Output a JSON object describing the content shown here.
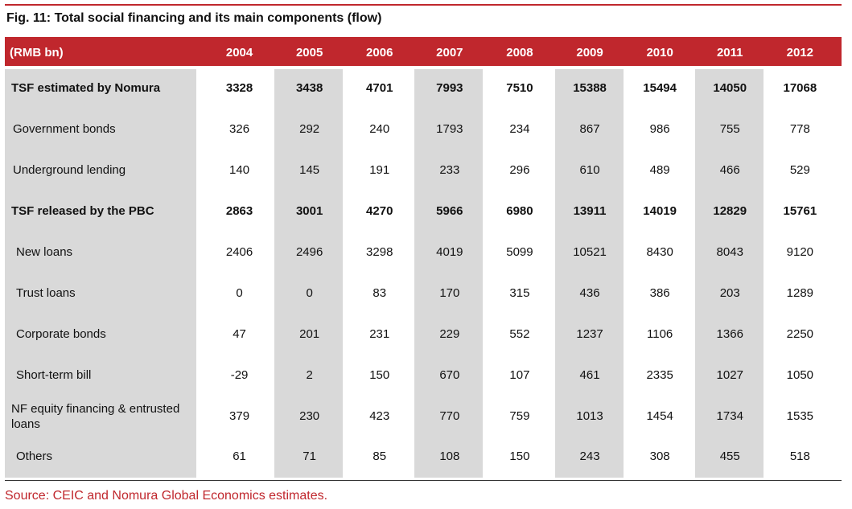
{
  "title": "Fig. 11: Total social financing and its main components (flow)",
  "source": "Source: CEIC and Nomura Global Economics estimates.",
  "header": {
    "unit": "(RMB bn)",
    "years": [
      "2004",
      "2005",
      "2006",
      "2007",
      "2008",
      "2009",
      "2010",
      "2011",
      "2012"
    ]
  },
  "rows": [
    {
      "label": "TSF estimated by Nomura",
      "bold": true,
      "values": [
        "3328",
        "3438",
        "4701",
        "7993",
        "7510",
        "15388",
        "15494",
        "14050",
        "17068"
      ]
    },
    {
      "label": "Government bonds",
      "bold": false,
      "values": [
        "326",
        "292",
        "240",
        "1793",
        "234",
        "867",
        "986",
        "755",
        "778"
      ]
    },
    {
      "label": "Underground lending",
      "bold": false,
      "values": [
        "140",
        "145",
        "191",
        "233",
        "296",
        "610",
        "489",
        "466",
        "529"
      ]
    },
    {
      "label": "TSF released by the PBC",
      "bold": true,
      "values": [
        "2863",
        "3001",
        "4270",
        "5966",
        "6980",
        "13911",
        "14019",
        "12829",
        "15761"
      ]
    },
    {
      "label": "New loans",
      "bold": false,
      "values": [
        "2406",
        "2496",
        "3298",
        "4019",
        "5099",
        "10521",
        "8430",
        "8043",
        "9120"
      ]
    },
    {
      "label": "Trust loans",
      "bold": false,
      "values": [
        "0",
        "0",
        "83",
        "170",
        "315",
        "436",
        "386",
        "203",
        "1289"
      ]
    },
    {
      "label": "Corporate bonds",
      "bold": false,
      "values": [
        "47",
        "201",
        "231",
        "229",
        "552",
        "1237",
        "1106",
        "1366",
        "2250"
      ]
    },
    {
      "label": "Short-term bill",
      "bold": false,
      "values": [
        "-29",
        "2",
        "150",
        "670",
        "107",
        "461",
        "2335",
        "1027",
        "1050"
      ]
    },
    {
      "label": "NF equity financing & entrusted loans",
      "bold": false,
      "values": [
        "379",
        "230",
        "423",
        "770",
        "759",
        "1013",
        "1454",
        "1734",
        "1535"
      ]
    },
    {
      "label": "Others",
      "bold": false,
      "values": [
        "61",
        "71",
        "85",
        "108",
        "150",
        "243",
        "308",
        "455",
        "518"
      ]
    }
  ]
}
